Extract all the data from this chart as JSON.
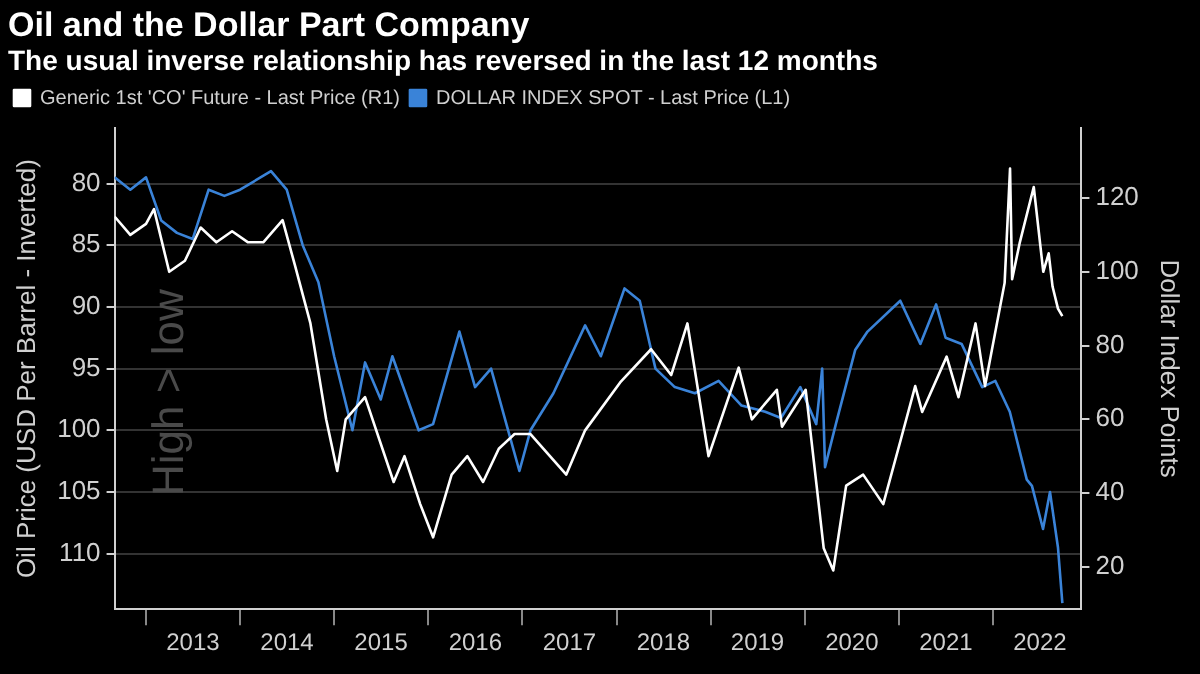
{
  "chart_data": {
    "type": "line",
    "title": "Oil and the Dollar Part Company",
    "subtitle": "The usual inverse relationship has reversed in the last 12 months",
    "ylabel": "Oil Price (USD Per Barrel - Inverted)",
    "y2label": "Dollar Index Points",
    "annotations": [
      "High > low"
    ],
    "xlim": [
      "2012-09-01",
      "2022-12-10"
    ],
    "xticks": [
      {
        "value": "2013-01-01",
        "label": null
      },
      {
        "value": "2013-07-02",
        "label": "2013"
      },
      {
        "value": "2014-01-01",
        "label": null
      },
      {
        "value": "2014-07-02",
        "label": "2014"
      },
      {
        "value": "2015-01-01",
        "label": null
      },
      {
        "value": "2015-07-02",
        "label": "2015"
      },
      {
        "value": "2016-01-01",
        "label": null
      },
      {
        "value": "2016-07-02",
        "label": "2016"
      },
      {
        "value": "2017-01-01",
        "label": null
      },
      {
        "value": "2017-07-02",
        "label": "2017"
      },
      {
        "value": "2018-01-01",
        "label": null
      },
      {
        "value": "2018-07-02",
        "label": "2018"
      },
      {
        "value": "2019-01-01",
        "label": null
      },
      {
        "value": "2019-07-02",
        "label": "2019"
      },
      {
        "value": "2020-01-01",
        "label": null
      },
      {
        "value": "2020-07-02",
        "label": "2020"
      },
      {
        "value": "2021-01-01",
        "label": null
      },
      {
        "value": "2021-07-02",
        "label": "2021"
      },
      {
        "value": "2022-01-01",
        "label": null
      },
      {
        "value": "2022-07-02",
        "label": "2022"
      }
    ],
    "ylim": [
      114.5,
      75.5
    ],
    "yticks": [
      80,
      85,
      90,
      95,
      100,
      105,
      110
    ],
    "y2lim": [
      8.5,
      139
    ],
    "y2ticks": [
      20,
      40,
      60,
      80,
      100,
      120
    ],
    "grid": "y",
    "legend": "top left",
    "marker": "none",
    "line_style": "solid",
    "series": [
      {
        "name": "Generic 1st 'CO' Future - Last Price (R1)",
        "color": "#ffffff",
        "axis": "y2",
        "x": [
          "2012-09-01",
          "2012-11-01",
          "2013-01-01",
          "2013-02-01",
          "2013-04-01",
          "2013-06-01",
          "2013-08-01",
          "2013-10-01",
          "2013-12-01",
          "2014-02-01",
          "2014-04-01",
          "2014-06-15",
          "2014-08-01",
          "2014-10-01",
          "2014-12-01",
          "2015-01-13",
          "2015-02-15",
          "2015-05-01",
          "2015-08-20",
          "2015-10-01",
          "2015-12-01",
          "2016-01-20",
          "2016-04-01",
          "2016-06-01",
          "2016-08-01",
          "2016-10-01",
          "2016-12-01",
          "2017-02-01",
          "2017-06-20",
          "2017-09-01",
          "2018-01-15",
          "2018-05-15",
          "2018-08-01",
          "2018-10-03",
          "2018-12-24",
          "2019-04-20",
          "2019-06-10",
          "2019-09-15",
          "2019-10-05",
          "2020-01-05",
          "2020-03-15",
          "2020-04-21",
          "2020-06-10",
          "2020-08-15",
          "2020-11-01",
          "2021-01-10",
          "2021-03-05",
          "2021-04-01",
          "2021-07-05",
          "2021-08-20",
          "2021-10-25",
          "2021-12-01",
          "2022-02-15",
          "2022-03-08",
          "2022-03-16",
          "2022-04-15",
          "2022-06-08",
          "2022-07-15",
          "2022-08-05",
          "2022-08-20",
          "2022-09-10",
          "2022-09-27"
        ],
        "values": [
          115,
          110,
          113,
          117,
          100,
          103,
          112,
          108,
          111,
          108,
          108,
          114,
          102,
          86,
          60,
          46,
          60,
          66,
          43,
          50,
          37,
          28,
          45,
          50,
          43,
          52,
          56,
          56,
          45,
          57,
          70,
          79,
          72,
          86,
          50,
          74,
          60,
          68,
          58,
          68,
          25,
          19,
          42,
          45,
          37,
          55,
          69,
          62,
          77,
          66,
          86,
          69,
          97,
          128,
          98,
          108,
          123,
          100,
          105,
          96,
          90,
          88
        ]
      },
      {
        "name": "DOLLAR INDEX SPOT - Last Price (L1)",
        "color": "#3a83d8",
        "x": [
          "2012-09-01",
          "2012-11-01",
          "2013-01-01",
          "2013-03-01",
          "2013-05-01",
          "2013-07-01",
          "2013-09-01",
          "2013-11-01",
          "2014-01-01",
          "2014-05-01",
          "2014-07-01",
          "2014-09-01",
          "2014-11-01",
          "2015-01-01",
          "2015-03-13",
          "2015-05-01",
          "2015-07-01",
          "2015-08-15",
          "2015-11-25",
          "2016-01-20",
          "2016-05-01",
          "2016-07-01",
          "2016-09-01",
          "2016-12-20",
          "2017-02-01",
          "2017-05-01",
          "2017-09-01",
          "2017-11-01",
          "2018-02-01",
          "2018-04-01",
          "2018-06-01",
          "2018-08-15",
          "2018-11-01",
          "2019-02-01",
          "2019-05-01",
          "2019-08-01",
          "2019-10-01",
          "2019-12-15",
          "2020-02-15",
          "2020-03-09",
          "2020-03-20",
          "2020-05-01",
          "2020-07-15",
          "2020-09-01",
          "2021-01-06",
          "2021-03-25",
          "2021-05-25",
          "2021-07-01",
          "2021-09-01",
          "2021-11-20",
          "2022-01-10",
          "2022-03-07",
          "2022-05-12",
          "2022-06-01",
          "2022-07-14",
          "2022-08-10",
          "2022-09-10",
          "2022-09-27"
        ],
        "values": [
          79.5,
          80.5,
          79.5,
          83,
          84,
          84.5,
          80.5,
          81,
          80.5,
          79,
          80.5,
          85,
          88,
          94,
          100,
          94.5,
          97.5,
          94,
          100,
          99.5,
          92,
          96.5,
          95,
          103.3,
          100,
          97,
          91.5,
          94,
          88.5,
          89.5,
          95,
          96.5,
          97,
          96,
          98,
          98.5,
          99,
          96.5,
          99.5,
          95,
          103,
          99.5,
          93.5,
          92,
          89.5,
          93,
          89.8,
          92.5,
          93,
          96.5,
          96,
          98.5,
          104,
          104.5,
          108,
          105,
          109.5,
          114
        ]
      }
    ]
  }
}
